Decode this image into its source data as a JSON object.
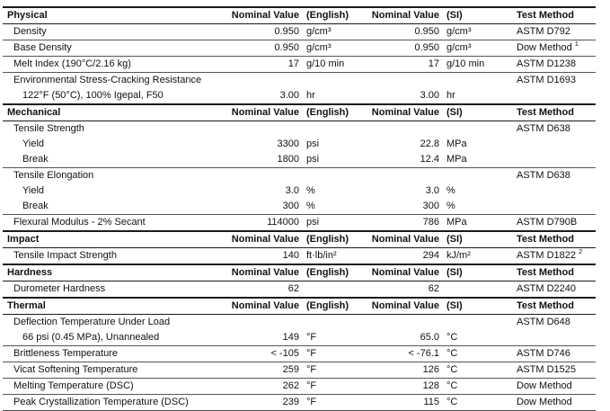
{
  "colors": {
    "background": "#ffffff",
    "text": "#111111",
    "border_heavy": "#1a1a1a",
    "border_light": "#555555"
  },
  "table": {
    "columns": {
      "nominal_en": "Nominal Value",
      "english": "(English)",
      "nominal_si": "Nominal Value",
      "si": "(SI)",
      "method": "Test Method"
    },
    "sections": [
      {
        "title": "Physical",
        "rows": [
          {
            "property": "Density",
            "indent": 1,
            "en": "0.950",
            "en_unit": "g/cm³",
            "si": "0.950",
            "si_unit": "g/cm³",
            "method": "ASTM D792",
            "divider": true
          },
          {
            "property": "Base Density",
            "indent": 1,
            "en": "0.950",
            "en_unit": "g/cm³",
            "si": "0.950",
            "si_unit": "g/cm³",
            "method": "Dow Method",
            "method_sup": "1",
            "divider": true
          },
          {
            "property": "Melt Index (190°C/2.16 kg)",
            "indent": 1,
            "en": "17",
            "en_unit": "g/10 min",
            "si": "17",
            "si_unit": "g/10 min",
            "method": "ASTM D1238",
            "divider": true
          },
          {
            "property": "Environmental Stress-Cracking Resistance",
            "indent": 1,
            "en": "",
            "en_unit": "",
            "si": "",
            "si_unit": "",
            "method": "ASTM D1693",
            "divider": false
          },
          {
            "property": "122°F (50°C), 100% Igepal, F50",
            "indent": 2,
            "en": "3.00",
            "en_unit": "hr",
            "si": "3.00",
            "si_unit": "hr",
            "method": "",
            "divider": false
          }
        ]
      },
      {
        "title": "Mechanical",
        "rows": [
          {
            "property": "Tensile Strength",
            "indent": 1,
            "en": "",
            "en_unit": "",
            "si": "",
            "si_unit": "",
            "method": "ASTM D638",
            "divider": false
          },
          {
            "property": "Yield",
            "indent": 2,
            "en": "3300",
            "en_unit": "psi",
            "si": "22.8",
            "si_unit": "MPa",
            "method": "",
            "divider": false
          },
          {
            "property": "Break",
            "indent": 2,
            "en": "1800",
            "en_unit": "psi",
            "si": "12.4",
            "si_unit": "MPa",
            "method": "",
            "divider": true
          },
          {
            "property": "Tensile Elongation",
            "indent": 1,
            "en": "",
            "en_unit": "",
            "si": "",
            "si_unit": "",
            "method": "ASTM D638",
            "divider": false
          },
          {
            "property": "Yield",
            "indent": 2,
            "en": "3.0",
            "en_unit": "%",
            "si": "3.0",
            "si_unit": "%",
            "method": "",
            "divider": false
          },
          {
            "property": "Break",
            "indent": 2,
            "en": "300",
            "en_unit": "%",
            "si": "300",
            "si_unit": "%",
            "method": "",
            "divider": true
          },
          {
            "property": "Flexural Modulus - 2% Secant",
            "indent": 1,
            "en": "114000",
            "en_unit": "psi",
            "si": "786",
            "si_unit": "MPa",
            "method": "ASTM D790B",
            "divider": false
          }
        ]
      },
      {
        "title": "Impact",
        "rows": [
          {
            "property": "Tensile Impact Strength",
            "indent": 1,
            "en": "140",
            "en_unit": "ft·lb/in²",
            "si": "294",
            "si_unit": "kJ/m²",
            "method": "ASTM D1822",
            "method_sup": "2",
            "divider": false
          }
        ]
      },
      {
        "title": "Hardness",
        "rows": [
          {
            "property": "Durometer Hardness",
            "indent": 1,
            "en": "62",
            "en_unit": "",
            "si": "62",
            "si_unit": "",
            "method": "ASTM D2240",
            "divider": false
          }
        ]
      },
      {
        "title": "Thermal",
        "rows": [
          {
            "property": "Deflection Temperature Under Load",
            "indent": 1,
            "en": "",
            "en_unit": "",
            "si": "",
            "si_unit": "",
            "method": "ASTM D648",
            "divider": false
          },
          {
            "property": "66 psi (0.45 MPa), Unannealed",
            "indent": 2,
            "en": "149",
            "en_unit": "°F",
            "si": "65.0",
            "si_unit": "°C",
            "method": "",
            "divider": true
          },
          {
            "property": "Brittleness Temperature",
            "indent": 1,
            "en": "< -105",
            "en_unit": "°F",
            "si": "< -76.1",
            "si_unit": "°C",
            "method": "ASTM D746",
            "divider": true
          },
          {
            "property": "Vicat Softening Temperature",
            "indent": 1,
            "en": "259",
            "en_unit": "°F",
            "si": "126",
            "si_unit": "°C",
            "method": "ASTM D1525",
            "divider": true
          },
          {
            "property": "Melting Temperature (DSC)",
            "indent": 1,
            "en": "262",
            "en_unit": "°F",
            "si": "128",
            "si_unit": "°C",
            "method": "Dow Method",
            "divider": true
          },
          {
            "property": "Peak Crystallization Temperature (DSC)",
            "indent": 1,
            "en": "239",
            "en_unit": "°F",
            "si": "115",
            "si_unit": "°C",
            "method": "Dow Method",
            "divider": false
          }
        ]
      }
    ]
  }
}
